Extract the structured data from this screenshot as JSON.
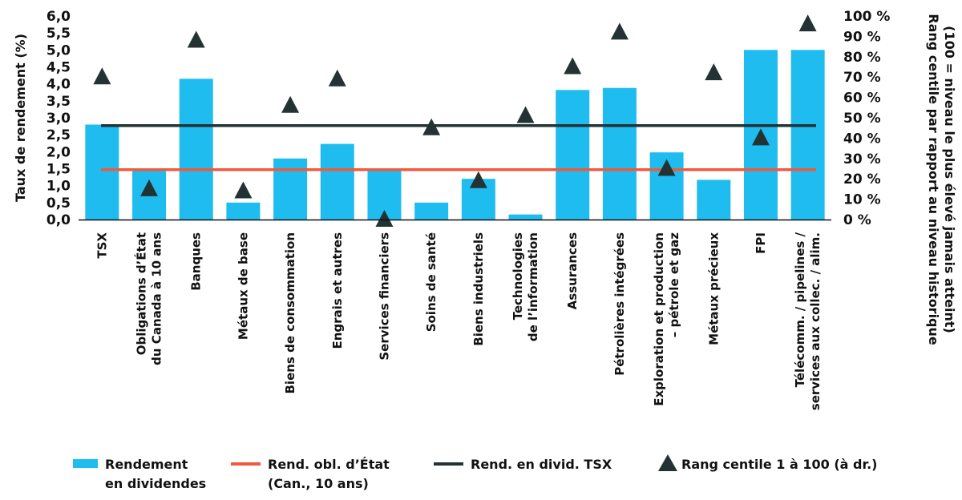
{
  "chart_data": {
    "type": "bar",
    "categories": [
      [
        "TSX"
      ],
      [
        "Obligations d’État",
        "du Canada à 10 ans"
      ],
      [
        "Banques"
      ],
      [
        "Métaux de base"
      ],
      [
        "Biens de consommation"
      ],
      [
        "Engrais et autres"
      ],
      [
        "Services financiers"
      ],
      [
        "Soins de santé"
      ],
      [
        "Biens industriels"
      ],
      [
        "Technologies",
        "de l’information"
      ],
      [
        "Assurances"
      ],
      [
        "Pétrolières intégrées"
      ],
      [
        "Exploration et production",
        "– pétrole et gaz"
      ],
      [
        "Métaux précieux"
      ],
      [
        "FPI"
      ],
      [
        "Télécomm. / pipelines /",
        "services aux collec. / alim."
      ]
    ],
    "series": [
      {
        "name": "Rendement en dividendes",
        "axis": "left",
        "type": "bar",
        "color": "#1fbcf0",
        "values": [
          2.8,
          1.5,
          4.15,
          0.5,
          1.8,
          2.23,
          1.5,
          0.5,
          1.2,
          0.15,
          3.82,
          3.88,
          1.98,
          1.17,
          5.0,
          5.0
        ]
      },
      {
        "name": "Rang centile 1 à 100 (à dr.)",
        "axis": "right",
        "type": "triangle",
        "color": "#233333",
        "values": [
          70,
          15,
          88,
          14,
          56,
          69,
          0,
          45,
          19,
          51,
          75,
          92,
          25,
          72,
          40,
          96
        ]
      }
    ],
    "reference_lines": [
      {
        "name": "Rend. obl. d’État (Can., 10 ans)",
        "value": 1.47,
        "color": "#f05a3c"
      },
      {
        "name": "Rend. en divid. TSX",
        "value": 2.77,
        "color": "#233333"
      }
    ],
    "ylabel": "Taux de rendement (%)",
    "ylabel_right": [
      "Rang centile par rapport au niveau historique",
      "(100 = niveau le plus élevé jamais atteint)"
    ],
    "ylim": [
      0,
      6
    ],
    "y_ticks": [
      "0,0",
      "0,5",
      "1,0",
      "1,5",
      "2,0",
      "2,5",
      "3,0",
      "3,5",
      "4,0",
      "4,5",
      "5,0",
      "5,5",
      "6,0"
    ],
    "y2lim": [
      0,
      100
    ],
    "y2_ticks": [
      "0 %",
      "10 %",
      "20 %",
      "30 %",
      "40 %",
      "50 %",
      "60 %",
      "70 %",
      "80 %",
      "90 %",
      "100 %"
    ],
    "grid": false,
    "legend_position": "bottom",
    "legend": [
      {
        "symbol": "bar",
        "color": "#1fbcf0",
        "lines": [
          "Rendement",
          "en dividendes"
        ]
      },
      {
        "symbol": "line",
        "color": "#f05a3c",
        "lines": [
          "Rend. obl. d’État",
          "(Can., 10 ans)"
        ]
      },
      {
        "symbol": "line",
        "color": "#233333",
        "lines": [
          "Rend. en divid. TSX"
        ]
      },
      {
        "symbol": "triangle",
        "color": "#233333",
        "lines": [
          "Rang centile 1 à 100 (à dr.)"
        ]
      }
    ]
  }
}
